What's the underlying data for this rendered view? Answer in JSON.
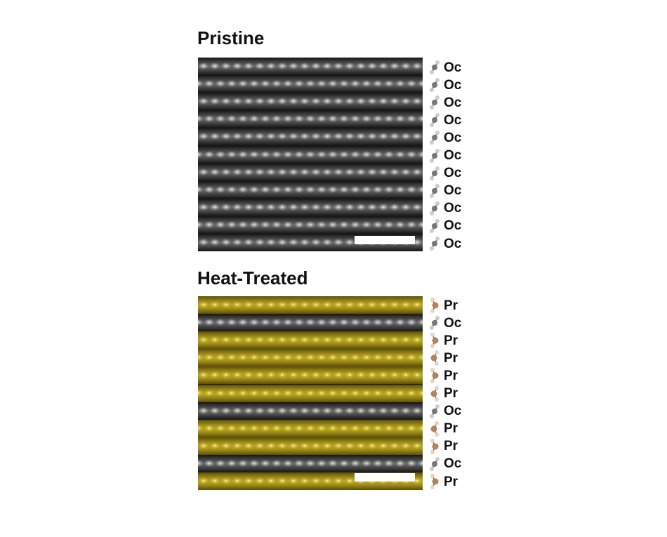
{
  "panels": [
    {
      "title": "Pristine",
      "rows": [
        "Oc",
        "Oc",
        "Oc",
        "Oc",
        "Oc",
        "Oc",
        "Oc",
        "Oc",
        "Oc",
        "Oc",
        "Oc"
      ]
    },
    {
      "title": "Heat-Treated",
      "rows": [
        "Pr",
        "Oc",
        "Pr",
        "Pr",
        "Pr",
        "Pr",
        "Oc",
        "Pr",
        "Pr",
        "Oc",
        "Pr"
      ]
    }
  ],
  "colors": {
    "Oc": "#6a6a6a",
    "Pr": "#b8a424",
    "Oc_icon": "#777777",
    "Pr_icon": "#b08462"
  }
}
